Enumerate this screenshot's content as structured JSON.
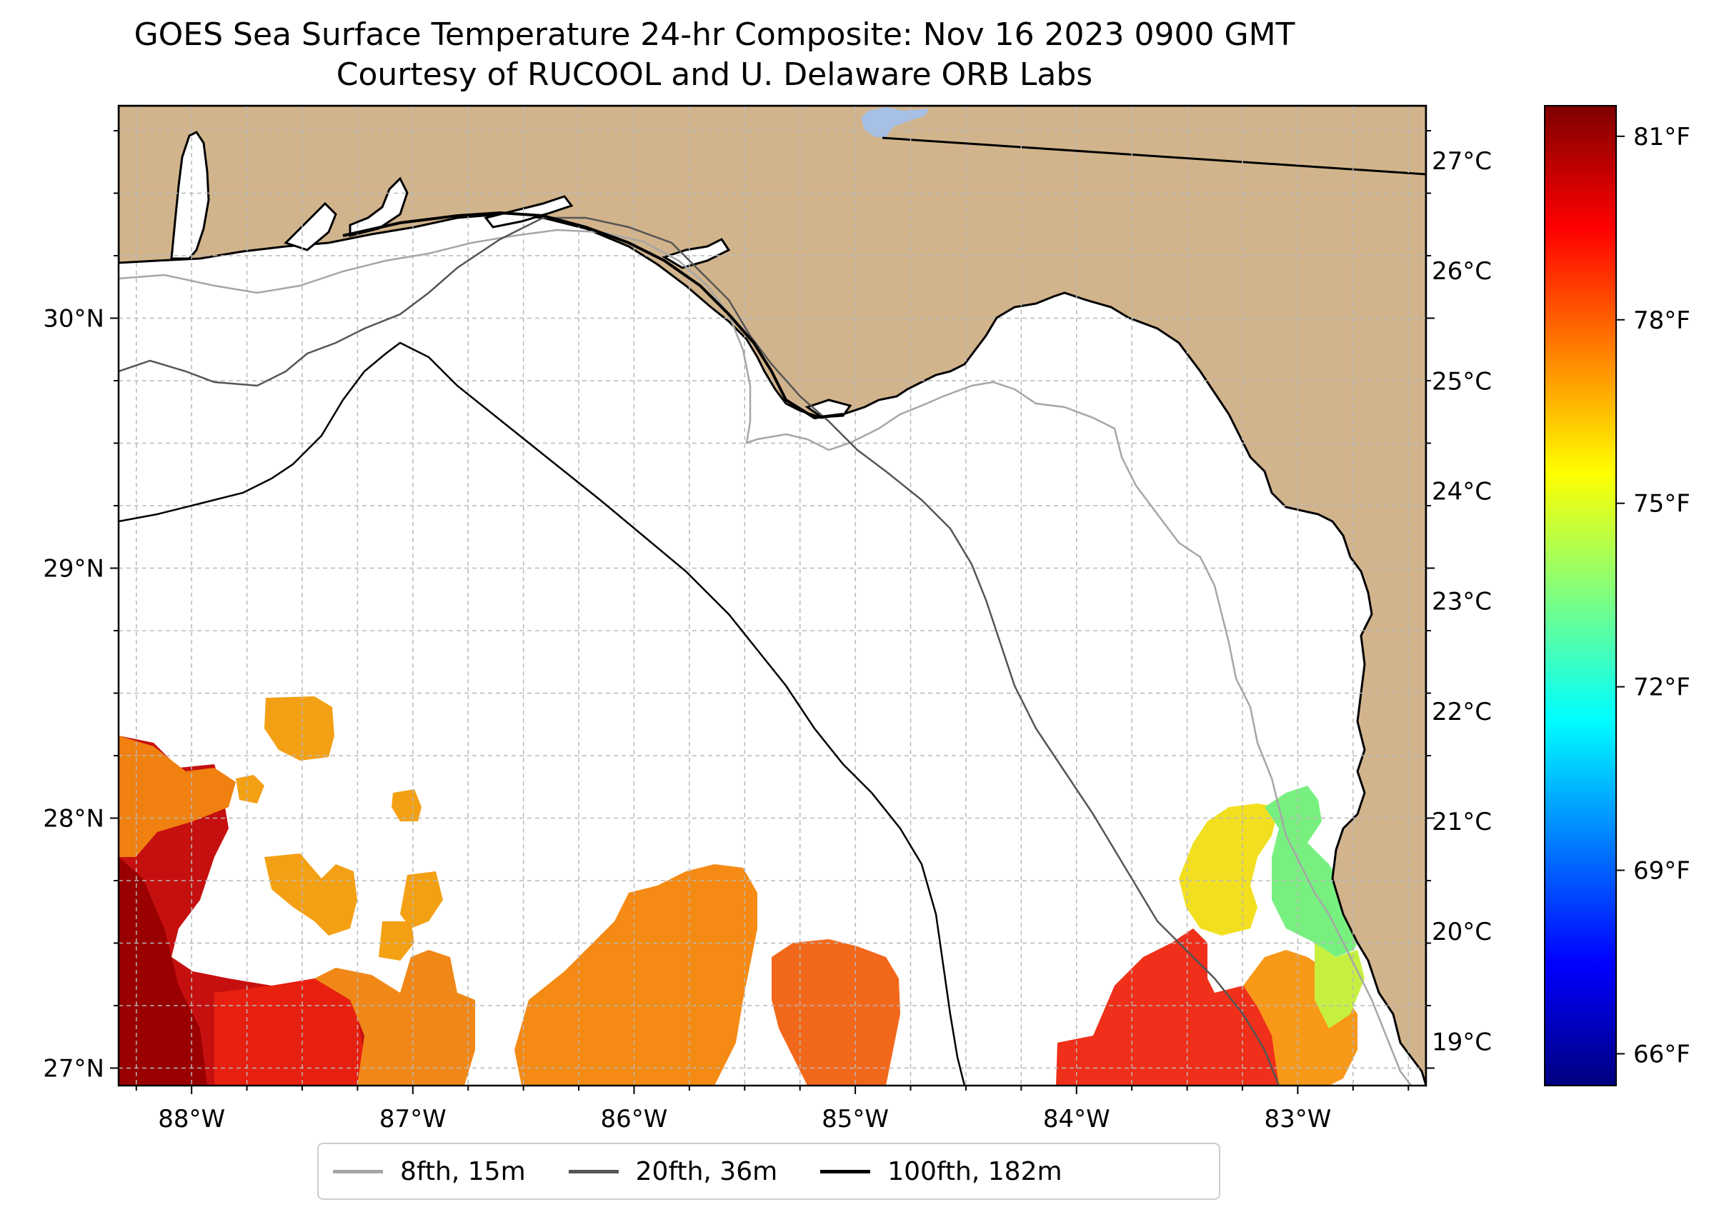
{
  "title": {
    "line1": "GOES Sea Surface Temperature 24-hr Composite: Nov 16 2023 0900 GMT",
    "line2": "Courtesy of RUCOOL and U. Delaware ORB Labs"
  },
  "map": {
    "lon_range": [
      -88.33,
      -82.42
    ],
    "lat_range": [
      26.93,
      30.85
    ],
    "lon_ticks": [
      {
        "value": -88,
        "label": "88°W"
      },
      {
        "value": -87,
        "label": "87°W"
      },
      {
        "value": -86,
        "label": "86°W"
      },
      {
        "value": -85,
        "label": "85°W"
      },
      {
        "value": -84,
        "label": "84°W"
      },
      {
        "value": -83,
        "label": "83°W"
      }
    ],
    "lat_ticks": [
      {
        "value": 30,
        "label": "30°N"
      },
      {
        "value": 29,
        "label": "29°N"
      },
      {
        "value": 28,
        "label": "28°N"
      },
      {
        "value": 27,
        "label": "27°N"
      }
    ],
    "grid_step_deg": 0.25,
    "land_color": "#d2b48c",
    "ocean_color": "#ffffff",
    "lake_color": "#a6c0e6"
  },
  "colorbar": {
    "range_c": [
      18.6,
      27.5
    ],
    "celsius_ticks": [
      {
        "value": 27,
        "label": "27°C"
      },
      {
        "value": 26,
        "label": "26°C"
      },
      {
        "value": 25,
        "label": "25°C"
      },
      {
        "value": 24,
        "label": "24°C"
      },
      {
        "value": 23,
        "label": "23°C"
      },
      {
        "value": 22,
        "label": "22°C"
      },
      {
        "value": 21,
        "label": "21°C"
      },
      {
        "value": 20,
        "label": "20°C"
      },
      {
        "value": 19,
        "label": "19°C"
      }
    ],
    "fahrenheit_ticks": [
      {
        "value": 81,
        "label": "81°F"
      },
      {
        "value": 78,
        "label": "78°F"
      },
      {
        "value": 75,
        "label": "75°F"
      },
      {
        "value": 72,
        "label": "72°F"
      },
      {
        "value": 69,
        "label": "69°F"
      },
      {
        "value": 66,
        "label": "66°F"
      }
    ],
    "colormap": [
      "#00007f",
      "#0000ff",
      "#007fff",
      "#00ffff",
      "#7fff7f",
      "#ffff00",
      "#ff7f00",
      "#ff0000",
      "#7f0000"
    ]
  },
  "legend": {
    "items": [
      {
        "label": "8fth, 15m",
        "color": "#a6a6a6"
      },
      {
        "label": "20fth, 36m",
        "color": "#555555"
      },
      {
        "label": "100fth, 182m",
        "color": "#000000"
      }
    ]
  },
  "sst_patches": [
    {
      "name": "west-patch-southwest",
      "temp_c": 26.8
    },
    {
      "name": "west-patch-mid",
      "temp_c": 25.8
    },
    {
      "name": "north-blob",
      "temp_c": 25.6
    },
    {
      "name": "central-patch",
      "temp_c": 25.4
    },
    {
      "name": "south-central-patch",
      "temp_c": 26.0
    },
    {
      "name": "southeast-patch",
      "temp_c": 26.3
    },
    {
      "name": "east-warm-patch",
      "temp_c": 24.8
    },
    {
      "name": "east-cool-patch",
      "temp_c": 22.6
    }
  ]
}
